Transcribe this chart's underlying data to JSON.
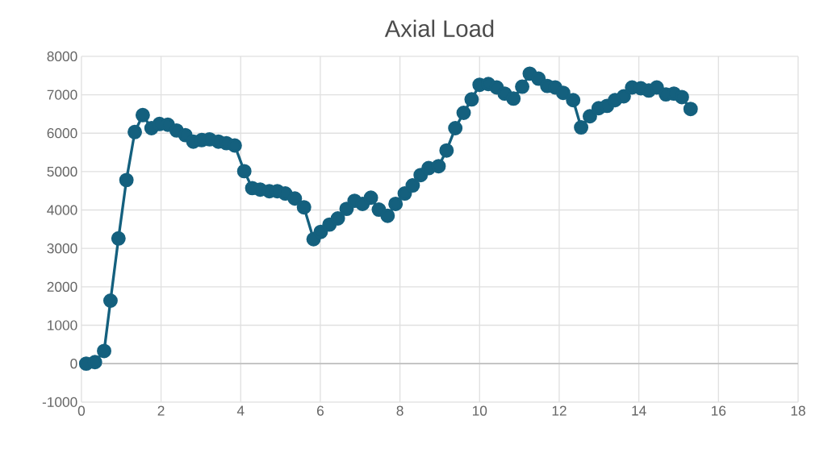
{
  "chart_data": {
    "type": "line",
    "title": "Axial Load",
    "xlim": [
      0,
      18
    ],
    "xticks": [
      0,
      2,
      4,
      6,
      8,
      10,
      12,
      14,
      16,
      18
    ],
    "ylim": [
      -1000,
      8000
    ],
    "yticks": [
      -1000,
      0,
      1000,
      2000,
      3000,
      4000,
      5000,
      6000,
      7000,
      8000
    ],
    "grid": true,
    "marker": "circle",
    "line_style": "solid",
    "series": [
      {
        "color": "#14607e",
        "x": [
          0.12,
          0.34,
          0.57,
          0.73,
          0.93,
          1.13,
          1.34,
          1.54,
          1.76,
          1.96,
          2.17,
          2.39,
          2.61,
          2.81,
          3.02,
          3.22,
          3.44,
          3.64,
          3.85,
          4.09,
          4.29,
          4.49,
          4.72,
          4.92,
          5.12,
          5.36,
          5.59,
          5.83,
          6.01,
          6.23,
          6.44,
          6.66,
          6.86,
          7.06,
          7.27,
          7.47,
          7.69,
          7.89,
          8.12,
          8.32,
          8.52,
          8.72,
          8.97,
          9.17,
          9.39,
          9.6,
          9.8,
          10.0,
          10.22,
          10.43,
          10.63,
          10.85,
          11.07,
          11.26,
          11.48,
          11.7,
          11.9,
          12.1,
          12.35,
          12.55,
          12.77,
          12.99,
          13.2,
          13.4,
          13.62,
          13.83,
          14.05,
          14.25,
          14.45,
          14.68,
          14.88,
          15.08,
          15.3
        ],
        "values": [
          0,
          40,
          330,
          1640,
          3260,
          4780,
          6030,
          6470,
          6130,
          6240,
          6220,
          6070,
          5950,
          5780,
          5820,
          5840,
          5780,
          5740,
          5680,
          5010,
          4570,
          4530,
          4490,
          4490,
          4430,
          4300,
          4070,
          3240,
          3430,
          3620,
          3780,
          4030,
          4240,
          4160,
          4320,
          4010,
          3850,
          4160,
          4430,
          4640,
          4910,
          5090,
          5140,
          5550,
          6130,
          6530,
          6880,
          7260,
          7280,
          7190,
          7030,
          6900,
          7210,
          7550,
          7420,
          7230,
          7190,
          7050,
          6860,
          6150,
          6440,
          6650,
          6710,
          6860,
          6960,
          7190,
          7170,
          7110,
          7190,
          7010,
          7030,
          6940,
          6630
        ]
      }
    ]
  }
}
